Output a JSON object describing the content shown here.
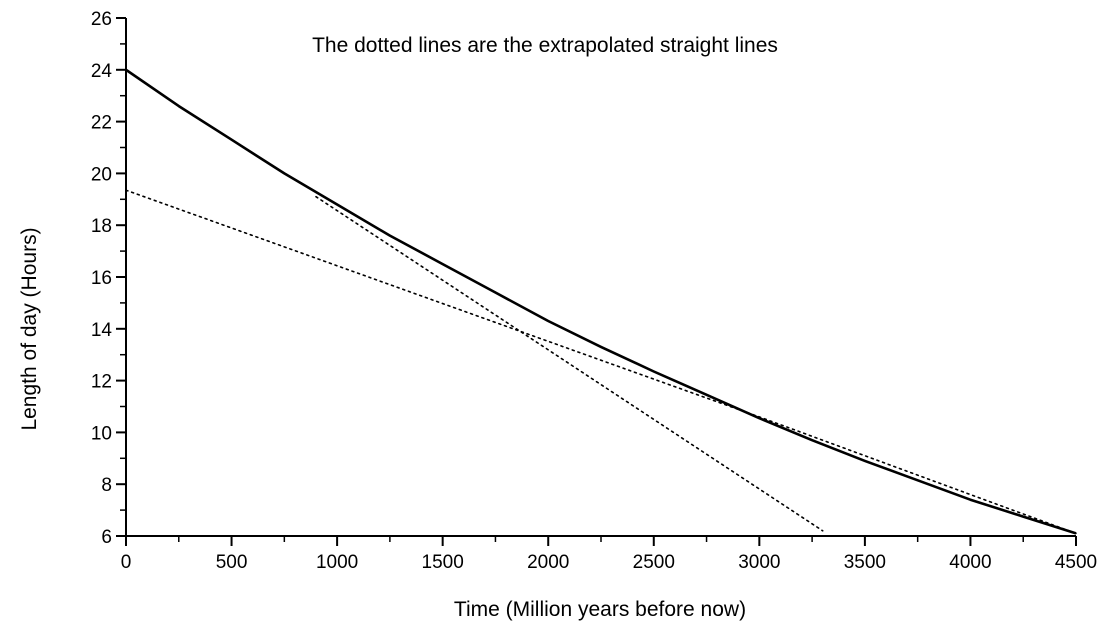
{
  "chart_data": {
    "type": "line",
    "title": "",
    "annotation": "The dotted lines are the extrapolated straight lines",
    "xlabel": "Time (Million years before now)",
    "ylabel": "Length of day (Hours)",
    "xlim": [
      0,
      4500
    ],
    "ylim": [
      6,
      26
    ],
    "xticks": [
      0,
      500,
      1000,
      1500,
      2000,
      2500,
      3000,
      3500,
      4000,
      4500
    ],
    "yticks": [
      6,
      8,
      10,
      12,
      14,
      16,
      18,
      20,
      22,
      24,
      26
    ],
    "grid": false,
    "legend": "none",
    "series": [
      {
        "style": "solid",
        "color": "#000000",
        "x": [
          0,
          250,
          500,
          750,
          1000,
          1250,
          1500,
          1750,
          2000,
          2250,
          2500,
          2750,
          3000,
          3250,
          3500,
          3750,
          4000,
          4250,
          4500
        ],
        "y": [
          24.0,
          22.6,
          21.3,
          20.0,
          18.8,
          17.6,
          16.5,
          15.4,
          14.3,
          13.3,
          12.35,
          11.45,
          10.55,
          9.7,
          8.9,
          8.15,
          7.4,
          6.75,
          6.1
        ]
      },
      {
        "style": "dotted",
        "color": "#000000",
        "x": [
          900,
          3300
        ],
        "y": [
          19.1,
          6.2
        ]
      },
      {
        "style": "dotted",
        "color": "#000000",
        "x": [
          0,
          3000,
          4500
        ],
        "y": [
          19.35,
          10.6,
          6.1
        ]
      }
    ]
  }
}
